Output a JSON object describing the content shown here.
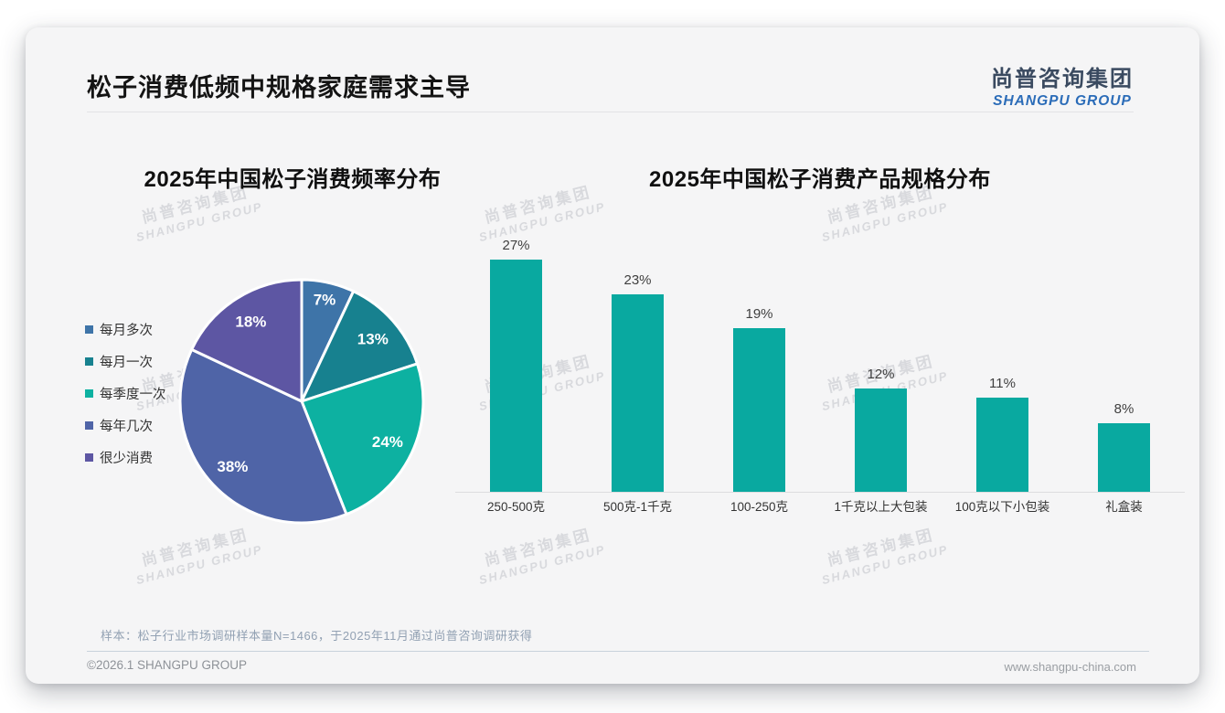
{
  "page": {
    "title": "松子消费低频中规格家庭需求主导",
    "logo": {
      "cn": "尚普咨询集团",
      "en": "SHANGPU GROUP"
    },
    "watermark": {
      "line1": "尚普咨询集团",
      "line2": "SHANGPU GROUP"
    },
    "footnote": "样本：松子行业市场调研样本量N=1466，于2025年11月通过尚普咨询调研获得",
    "footer_left": "©2026.1 SHANGPU GROUP",
    "footer_right": "www.shangpu-china.com"
  },
  "colors": {
    "accent_teal": "#09a9a0",
    "logo_en_blue": "#2b6cb8",
    "pie_palette": [
      "#3e74a8",
      "#17818f",
      "#0db1a1",
      "#4f64a7",
      "#5d56a3"
    ]
  },
  "chart_data": [
    {
      "type": "pie",
      "title": "2025年中国松子消费频率分布",
      "labels": [
        "每月多次",
        "每月一次",
        "每季度一次",
        "每年几次",
        "很少消费"
      ],
      "values": [
        7,
        13,
        24,
        38,
        18
      ],
      "unit": "%",
      "data_labels": [
        "7%",
        "13%",
        "24%",
        "38%",
        "18%"
      ],
      "colors": [
        "#3e74a8",
        "#17818f",
        "#0db1a1",
        "#4f64a7",
        "#5d56a3"
      ],
      "legend_position": "left",
      "start_angle": "12-oclock",
      "direction": "clockwise"
    },
    {
      "type": "bar",
      "title": "2025年中国松子消费产品规格分布",
      "categories": [
        "250-500克",
        "500克-1千克",
        "100-250克",
        "1千克以上大包装",
        "100克以下小包装",
        "礼盒装"
      ],
      "values": [
        27,
        23,
        19,
        12,
        11,
        8
      ],
      "unit": "%",
      "data_labels": [
        "27%",
        "23%",
        "19%",
        "12%",
        "11%",
        "8%"
      ],
      "bar_color": "#09a9a0",
      "ylim": [
        0,
        30
      ],
      "axis_line": "light-gray-baseline",
      "grid": false,
      "legend": false
    }
  ]
}
